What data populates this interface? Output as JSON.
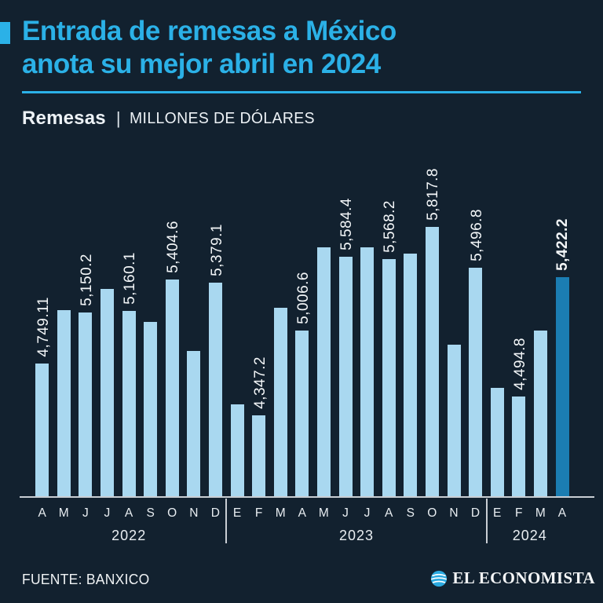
{
  "header": {
    "title_line1": "Entrada de remesas a México",
    "title_line2": "anota su mejor abril en 2024",
    "kicker": "Remesas",
    "kicker_separator": "|",
    "units_label": "MILLONES DE DÓLARES"
  },
  "chart_data": {
    "type": "bar",
    "title": "Entrada de remesas a México anota su mejor abril en 2024",
    "subtitle": "Remesas | Millones de dólares",
    "ylabel": "Millones de dólares",
    "xlabel": "",
    "grid": false,
    "legend": "none",
    "ylim": [
      3714,
      5860
    ],
    "categories": [
      "A",
      "M",
      "J",
      "J",
      "A",
      "S",
      "O",
      "N",
      "D",
      "E",
      "F",
      "M",
      "A",
      "M",
      "J",
      "J",
      "A",
      "S",
      "O",
      "N",
      "D",
      "E",
      "F",
      "M",
      "A"
    ],
    "values": [
      4749.11,
      5170,
      5150.2,
      5330,
      5160.1,
      5075,
      5404.6,
      4850,
      5379.1,
      4430,
      4347.2,
      5185,
      5006.6,
      5660,
      5584.4,
      5655,
      5568.2,
      5607,
      5817.8,
      4900,
      5496.8,
      4560,
      4494.8,
      5007,
      5422.2
    ],
    "point_labels": [
      "4,749.11",
      null,
      "5,150.2",
      null,
      "5,160.1",
      null,
      "5,404.6",
      null,
      "5,379.1",
      null,
      "4,347.2",
      null,
      "5,006.6",
      null,
      "5,584.4",
      null,
      "5,568.2",
      null,
      "5,817.8",
      null,
      "5,496.8",
      null,
      "4,494.8",
      null,
      "5,422.2"
    ],
    "highlight_index": 24,
    "year_groups": [
      {
        "label": "2022",
        "start": 0,
        "end": 8
      },
      {
        "label": "2023",
        "start": 9,
        "end": 20
      },
      {
        "label": "2024",
        "start": 21,
        "end": 24
      }
    ]
  },
  "footer": {
    "source": "FUENTE: BANXICO",
    "brand": "EL ECONOMISTA"
  },
  "colors": {
    "background": "#12212F",
    "accent_cyan": "#2BB1E7",
    "bar_light": "#A9D8F0",
    "bar_highlight": "#1B7DB2",
    "axis_line": "#C9CED4",
    "text": "#F0F3F5"
  }
}
